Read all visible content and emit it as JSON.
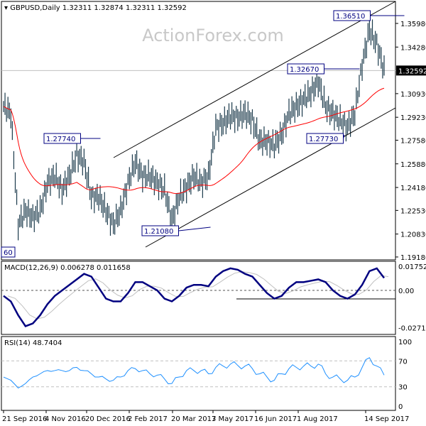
{
  "header": {
    "symbol_label": "GBPUSD,Daily",
    "ohlc": "1.32311 1.32874 1.32311 1.32592"
  },
  "watermark": "ActionForex.com",
  "colors": {
    "bars": "#1b3a4b",
    "ma": "#ff0000",
    "macd": "#000080",
    "signal": "#c0c0c0",
    "rsi": "#1e90ff",
    "current_price_bg": "#000000"
  },
  "chart_data": [
    {
      "type": "bar",
      "title": "GBPUSD,Daily",
      "y_ticks": [
        "1.35980",
        "1.34280",
        "1.30930",
        "1.29230",
        "1.27580",
        "1.25880",
        "1.24180",
        "1.22530",
        "1.20830",
        "1.19180"
      ],
      "ylim": [
        1.1918,
        1.3598
      ],
      "current_price": "1.32592",
      "x_ticks": [
        "21 Sep 2016",
        "4 Nov 2016",
        "20 Dec 2016",
        "2 Feb 2017",
        "20 Mar 2017",
        "3 May 2017",
        "16 Jun 2017",
        "1 Aug 2017",
        "14 Sep 2017"
      ],
      "closes": [
        1.3,
        1.295,
        1.215,
        1.225,
        1.22,
        1.225,
        1.245,
        1.25,
        1.24,
        1.25,
        1.265,
        1.26,
        1.235,
        1.235,
        1.225,
        1.215,
        1.225,
        1.245,
        1.26,
        1.25,
        1.25,
        1.245,
        1.24,
        1.218,
        1.235,
        1.242,
        1.25,
        1.245,
        1.25,
        1.285,
        1.288,
        1.293,
        1.292,
        1.295,
        1.29,
        1.275,
        1.275,
        1.272,
        1.28,
        1.295,
        1.3,
        1.305,
        1.31,
        1.318,
        1.3,
        1.295,
        1.29,
        1.285,
        1.295,
        1.33,
        1.355,
        1.345,
        1.326
      ],
      "annotations": [
        "1.27740",
        "1.21080",
        "1.32670",
        "1.27730",
        "1.36510",
        "60"
      ]
    },
    {
      "type": "line",
      "title": "MACD(12,26,9) 0.006278 0.011658",
      "y_ticks": [
        "0.017521",
        "0.00",
        "-0.027169"
      ],
      "ylim": [
        -0.027169,
        0.017521
      ],
      "macd": [
        -0.004,
        -0.008,
        -0.018,
        -0.026,
        -0.024,
        -0.018,
        -0.01,
        -0.004,
        0.0,
        0.004,
        0.008,
        0.012,
        0.01,
        0.002,
        -0.006,
        -0.008,
        -0.008,
        -0.002,
        0.006,
        0.006,
        0.003,
        0.0,
        -0.006,
        -0.008,
        -0.004,
        0.002,
        0.004,
        0.004,
        0.003,
        0.01,
        0.014,
        0.016,
        0.015,
        0.012,
        0.01,
        0.004,
        -0.002,
        -0.006,
        -0.004,
        0.002,
        0.006,
        0.006,
        0.007,
        0.008,
        0.006,
        0.0,
        -0.004,
        -0.006,
        -0.003,
        0.004,
        0.014,
        0.016,
        0.009
      ]
    },
    {
      "type": "line",
      "title": "RSI(14) 48.7404",
      "y_ticks": [
        "100",
        "70",
        "30",
        "0"
      ],
      "ylim": [
        0,
        100
      ],
      "rsi": [
        45,
        40,
        28,
        35,
        45,
        50,
        55,
        55,
        55,
        55,
        60,
        55,
        50,
        45,
        42,
        40,
        45,
        55,
        58,
        55,
        50,
        48,
        42,
        35,
        45,
        55,
        55,
        55,
        50,
        60,
        62,
        65,
        63,
        62,
        58,
        50,
        45,
        40,
        50,
        58,
        60,
        62,
        62,
        65,
        50,
        45,
        42,
        40,
        45,
        60,
        75,
        62,
        48
      ]
    }
  ]
}
